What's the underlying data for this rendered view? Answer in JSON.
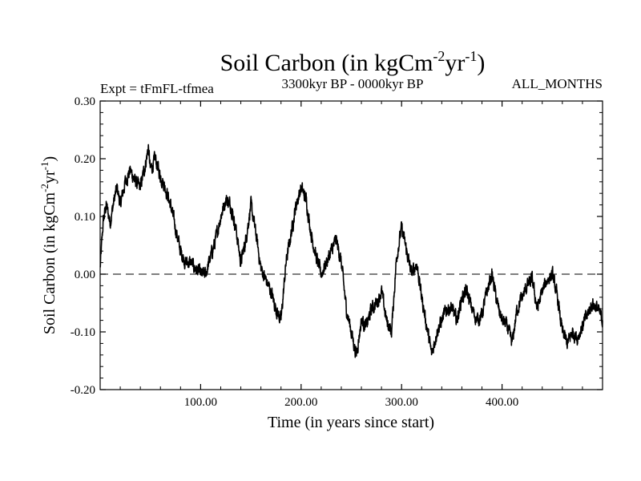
{
  "chart_data": {
    "type": "line",
    "title_main": "Soil Carbon (in kgCm",
    "title_sup1": "-2",
    "title_mid": "yr",
    "title_sup2": "-1",
    "title_end": ")",
    "subtitle_left": "Expt = tFmFL-tfmea",
    "subtitle_center": "3300kyr BP - 0000kyr BP",
    "subtitle_right": "ALL_MONTHS",
    "xlabel": "Time (in years since start)",
    "ylabel_main": "Soil Carbon (in kgCm",
    "ylabel_sup1": "-2",
    "ylabel_mid": "yr",
    "ylabel_sup2": "-1",
    "ylabel_end": ")",
    "xlim": [
      0,
      500
    ],
    "ylim": [
      -0.2,
      0.3
    ],
    "x_ticks": [
      100,
      200,
      300,
      400
    ],
    "x_tick_labels": [
      "100.00",
      "200.00",
      "300.00",
      "400.00"
    ],
    "y_ticks": [
      -0.2,
      -0.1,
      0.0,
      0.1,
      0.2,
      0.3
    ],
    "y_tick_labels": [
      "-0.20",
      "-0.10",
      "0.00",
      "0.10",
      "0.20",
      "0.30"
    ],
    "zero_line": "dashed",
    "series": [
      {
        "name": "Soil Carbon",
        "x": [
          0,
          3,
          6,
          10,
          14,
          17,
          20,
          25,
          30,
          35,
          40,
          45,
          48,
          50,
          55,
          60,
          65,
          70,
          75,
          80,
          85,
          90,
          95,
          100,
          105,
          110,
          115,
          120,
          125,
          130,
          135,
          140,
          145,
          150,
          155,
          160,
          165,
          170,
          175,
          180,
          185,
          190,
          195,
          200,
          205,
          210,
          215,
          220,
          225,
          230,
          235,
          240,
          245,
          250,
          255,
          260,
          265,
          270,
          275,
          280,
          285,
          290,
          295,
          300,
          305,
          310,
          315,
          320,
          325,
          330,
          335,
          340,
          345,
          350,
          355,
          360,
          365,
          370,
          375,
          380,
          385,
          390,
          395,
          400,
          405,
          410,
          415,
          420,
          425,
          430,
          435,
          440,
          445,
          450,
          455,
          460,
          465,
          470,
          475,
          480,
          485,
          490,
          495,
          500
        ],
        "y": [
          0.01,
          0.09,
          0.12,
          0.09,
          0.13,
          0.15,
          0.12,
          0.16,
          0.18,
          0.16,
          0.15,
          0.19,
          0.22,
          0.18,
          0.2,
          0.17,
          0.15,
          0.12,
          0.08,
          0.04,
          0.02,
          0.02,
          0.01,
          0.0,
          0.0,
          0.03,
          0.06,
          0.1,
          0.13,
          0.12,
          0.08,
          0.02,
          0.06,
          0.12,
          0.07,
          0.01,
          -0.01,
          -0.03,
          -0.06,
          -0.08,
          0.02,
          0.07,
          0.12,
          0.15,
          0.13,
          0.07,
          0.03,
          0.0,
          0.02,
          0.04,
          0.06,
          0.02,
          -0.06,
          -0.1,
          -0.14,
          -0.08,
          -0.09,
          -0.06,
          -0.05,
          -0.03,
          -0.08,
          -0.1,
          0.03,
          0.08,
          0.04,
          0.0,
          0.02,
          -0.04,
          -0.09,
          -0.14,
          -0.1,
          -0.08,
          -0.06,
          -0.06,
          -0.08,
          -0.04,
          -0.03,
          -0.06,
          -0.08,
          -0.07,
          -0.03,
          0.0,
          -0.05,
          -0.08,
          -0.09,
          -0.12,
          -0.06,
          -0.04,
          -0.02,
          -0.01,
          -0.06,
          -0.03,
          -0.01,
          0.0,
          -0.04,
          -0.1,
          -0.12,
          -0.1,
          -0.11,
          -0.09,
          -0.07,
          -0.05,
          -0.06,
          -0.08
        ]
      }
    ]
  }
}
